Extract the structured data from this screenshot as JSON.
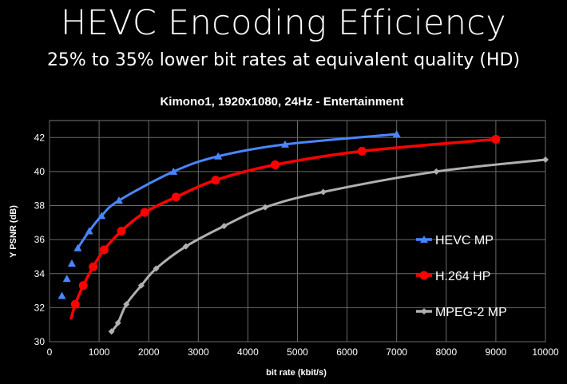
{
  "slide": {
    "title": "HEVC Encoding Efficiency",
    "subtitle": "25% to 35% lower bit rates at equivalent quality (HD)"
  },
  "chart_data": {
    "type": "line",
    "title": "Kimono1, 1920x1080, 24Hz - Entertainment",
    "xlabel": "bit rate (kbit/s)",
    "ylabel": "Y PSNR (dB)",
    "xlim": [
      0,
      10000
    ],
    "ylim": [
      30,
      43
    ],
    "x_ticks": [
      0,
      1000,
      2000,
      3000,
      4000,
      5000,
      6000,
      7000,
      8000,
      9000,
      10000
    ],
    "y_ticks": [
      30,
      32,
      34,
      36,
      38,
      40,
      42
    ],
    "grid": true,
    "legend_position": "lower-right",
    "series": [
      {
        "name": "HEVC MP",
        "color": "#4a86ff",
        "marker": "triangle",
        "points": [
          [
            250,
            32.7
          ],
          [
            350,
            33.7
          ],
          [
            450,
            34.6
          ],
          [
            570,
            35.5
          ],
          [
            800,
            36.5
          ],
          [
            1050,
            37.4
          ],
          [
            1400,
            38.3
          ],
          [
            2500,
            40.0
          ],
          [
            3400,
            40.9
          ],
          [
            4750,
            41.6
          ],
          [
            7000,
            42.2
          ]
        ]
      },
      {
        "name": "H.264 HP",
        "color": "#ff0000",
        "marker": "circle",
        "points": [
          [
            520,
            32.2
          ],
          [
            680,
            33.3
          ],
          [
            880,
            34.4
          ],
          [
            1100,
            35.4
          ],
          [
            1450,
            36.5
          ],
          [
            1920,
            37.6
          ],
          [
            2550,
            38.5
          ],
          [
            3350,
            39.5
          ],
          [
            4550,
            40.4
          ],
          [
            6300,
            41.2
          ],
          [
            9000,
            41.9
          ]
        ]
      },
      {
        "name": "MPEG-2 MP",
        "color": "#b0b0b0",
        "marker": "diamond",
        "points": [
          [
            1250,
            30.6
          ],
          [
            1380,
            31.1
          ],
          [
            1550,
            32.2
          ],
          [
            1850,
            33.3
          ],
          [
            2150,
            34.3
          ],
          [
            2750,
            35.6
          ],
          [
            3520,
            36.8
          ],
          [
            4350,
            37.9
          ],
          [
            5520,
            38.8
          ],
          [
            7800,
            40.0
          ],
          [
            10000,
            40.7
          ]
        ]
      }
    ]
  }
}
